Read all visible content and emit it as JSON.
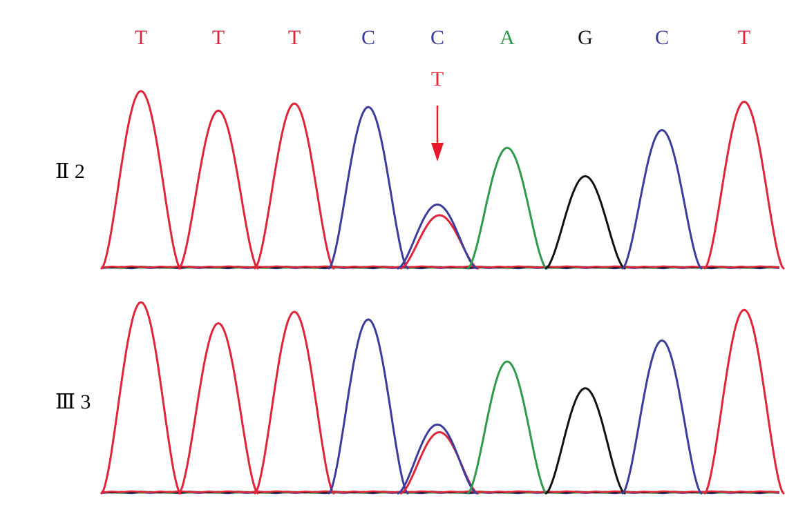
{
  "colors": {
    "T": "#e0243a",
    "C": "#3c3c9c",
    "A": "#2f9a4a",
    "G": "#111111",
    "arrow": "#e8182a"
  },
  "chart_data": {
    "type": "line",
    "title": "",
    "xlabel": "",
    "ylabel": "",
    "grid": false,
    "legend": "none",
    "sequence": [
      "T",
      "T",
      "T",
      "C",
      "C",
      "A",
      "G",
      "C",
      "T"
    ],
    "variant": {
      "position_index": 4,
      "reference": "C",
      "alternate": "T",
      "arrow": true
    },
    "samples": [
      {
        "label": "Ⅱ 2",
        "peaks": [
          {
            "base": "T",
            "height": 1.0
          },
          {
            "base": "T",
            "height": 0.89
          },
          {
            "base": "T",
            "height": 0.93
          },
          {
            "base": "C",
            "height": 0.91
          },
          {
            "base": "C",
            "height": 0.36,
            "secondary": {
              "base": "T",
              "height": 0.3
            }
          },
          {
            "base": "A",
            "height": 0.68
          },
          {
            "base": "G",
            "height": 0.52
          },
          {
            "base": "C",
            "height": 0.78
          },
          {
            "base": "T",
            "height": 0.94
          }
        ]
      },
      {
        "label": "Ⅲ 3",
        "peaks": [
          {
            "base": "T",
            "height": 1.0
          },
          {
            "base": "T",
            "height": 0.89
          },
          {
            "base": "T",
            "height": 0.95
          },
          {
            "base": "C",
            "height": 0.91
          },
          {
            "base": "C",
            "height": 0.36,
            "secondary": {
              "base": "T",
              "height": 0.32
            }
          },
          {
            "base": "A",
            "height": 0.69
          },
          {
            "base": "G",
            "height": 0.55
          },
          {
            "base": "C",
            "height": 0.8
          },
          {
            "base": "T",
            "height": 0.96
          }
        ]
      }
    ]
  }
}
